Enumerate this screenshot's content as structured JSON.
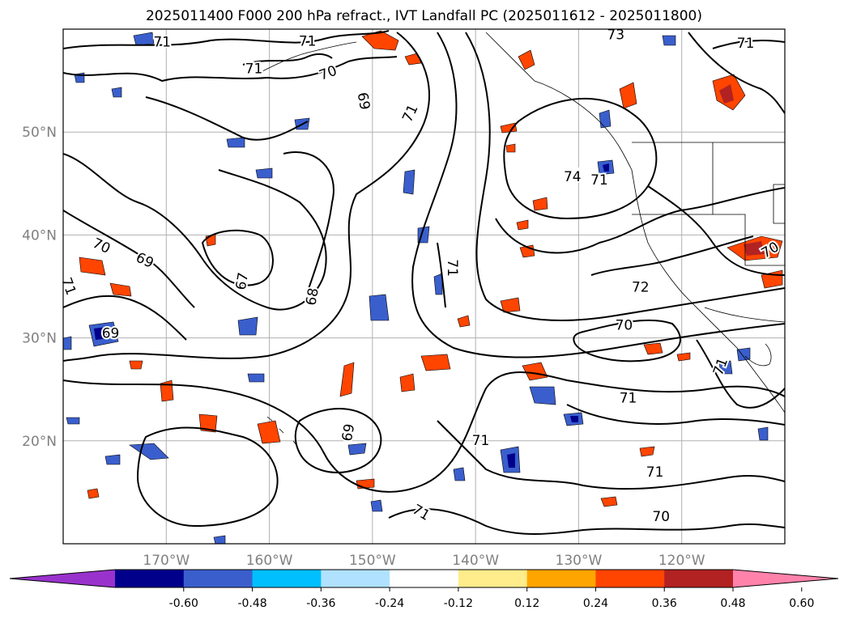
{
  "title": "2025011400 F000 200 hPa refract., IVT Landfall PC (2025011612 - 2025011800)",
  "map": {
    "lon_range": [
      -180,
      -110
    ],
    "lat_range": [
      10,
      60
    ],
    "lon_ticks": [
      {
        "value": -170,
        "label": "170°W"
      },
      {
        "value": -160,
        "label": "160°W"
      },
      {
        "value": -150,
        "label": "150°W"
      },
      {
        "value": -140,
        "label": "140°W"
      },
      {
        "value": -130,
        "label": "130°W"
      },
      {
        "value": -120,
        "label": "120°W"
      }
    ],
    "lat_ticks": [
      {
        "value": 20,
        "label": "20°N"
      },
      {
        "value": 30,
        "label": "30°N"
      },
      {
        "value": 40,
        "label": "40°N"
      },
      {
        "value": 50,
        "label": "50°N"
      }
    ],
    "grid": true,
    "contour_labels": [
      {
        "text": "71",
        "lon": -170.4,
        "lat": 58.7,
        "rot": 0
      },
      {
        "text": "71",
        "lon": -156.3,
        "lat": 58.8,
        "rot": 0
      },
      {
        "text": "70",
        "lon": -154.3,
        "lat": 55.7,
        "rot": -20
      },
      {
        "text": "71",
        "lon": -161.5,
        "lat": 56.1,
        "rot": 0
      },
      {
        "text": "69",
        "lon": -150.9,
        "lat": 53.0,
        "rot": 80
      },
      {
        "text": "71",
        "lon": -146.3,
        "lat": 51.8,
        "rot": -65
      },
      {
        "text": "73",
        "lon": -126.4,
        "lat": 59.4,
        "rot": 0
      },
      {
        "text": "71",
        "lon": -113.8,
        "lat": 58.6,
        "rot": 0
      },
      {
        "text": "74",
        "lon": -130.6,
        "lat": 45.6,
        "rot": 0
      },
      {
        "text": "71",
        "lon": -142.3,
        "lat": 36.8,
        "rot": 90
      },
      {
        "text": "71",
        "lon": -128.0,
        "lat": 45.3,
        "rot": 0
      },
      {
        "text": "70",
        "lon": -111.4,
        "lat": 38.5,
        "rot": -30
      },
      {
        "text": "72",
        "lon": -124.0,
        "lat": 34.9,
        "rot": 0
      },
      {
        "text": "70",
        "lon": -176.3,
        "lat": 38.9,
        "rot": 25
      },
      {
        "text": "69",
        "lon": -172.1,
        "lat": 37.5,
        "rot": 25
      },
      {
        "text": "71",
        "lon": -179.5,
        "lat": 35.0,
        "rot": 70
      },
      {
        "text": "67",
        "lon": -162.6,
        "lat": 35.5,
        "rot": -80
      },
      {
        "text": "68",
        "lon": -155.8,
        "lat": 34.0,
        "rot": -80
      },
      {
        "text": "69",
        "lon": -175.4,
        "lat": 30.4,
        "rot": 0
      },
      {
        "text": "70",
        "lon": -125.6,
        "lat": 31.2,
        "rot": 0
      },
      {
        "text": "71",
        "lon": -116.2,
        "lat": 27.2,
        "rot": -70
      },
      {
        "text": "71",
        "lon": -125.2,
        "lat": 24.1,
        "rot": 0
      },
      {
        "text": "69",
        "lon": -152.3,
        "lat": 20.8,
        "rot": -80
      },
      {
        "text": "71",
        "lon": -139.5,
        "lat": 20.0,
        "rot": 0
      },
      {
        "text": "71",
        "lon": -122.6,
        "lat": 16.9,
        "rot": 0
      },
      {
        "text": "71",
        "lon": -145.3,
        "lat": 13.0,
        "rot": 30
      },
      {
        "text": "70",
        "lon": -122.0,
        "lat": 12.6,
        "rot": 0
      }
    ]
  },
  "colorbar": {
    "colors": [
      "#9932cc",
      "#00008b",
      "#3a5fcd",
      "#00bfff",
      "#b0e2ff",
      "#ffffff",
      "#ffec8b",
      "#ffa500",
      "#ff4500",
      "#b22222",
      "#ff82ab"
    ],
    "labels": [
      "-0.60",
      "-0.48",
      "-0.36",
      "-0.24",
      "-0.12",
      "0.12",
      "0.24",
      "0.36",
      "0.48",
      "0.60"
    ]
  }
}
